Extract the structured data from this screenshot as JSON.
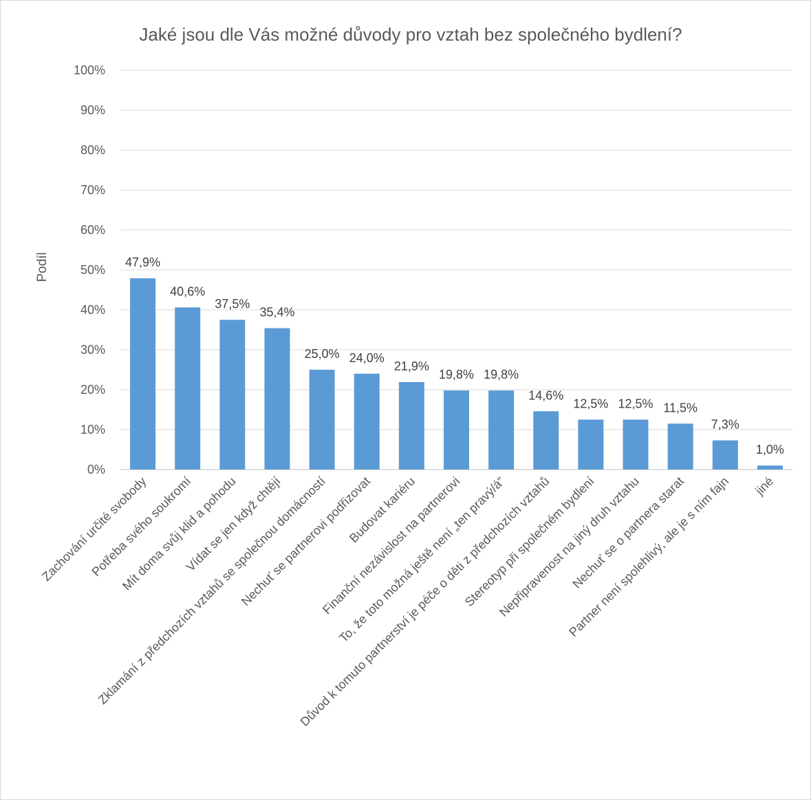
{
  "chart_data": {
    "type": "bar",
    "title": "Jaké jsou dle Vás možné důvody pro vztah bez společného bydlení?",
    "ylabel": "Podíl",
    "xlabel": "",
    "ylim": [
      0,
      100
    ],
    "yticks": [
      0,
      10,
      20,
      30,
      40,
      50,
      60,
      70,
      80,
      90,
      100
    ],
    "ytick_labels": [
      "0%",
      "10%",
      "20%",
      "30%",
      "40%",
      "50%",
      "60%",
      "70%",
      "80%",
      "90%",
      "100%"
    ],
    "grid": true,
    "bar_color": "#5b9bd5",
    "categories": [
      "Zachování určité svobody",
      "Potřeba svého soukromí",
      "Mít doma svůj klid a pohodu",
      "Vídat se jen když chtějí",
      "Zklamání z předchozích vztahů se společnou domácností",
      "Nechuť se partnerovi podřizovat",
      "Budovat kariéru",
      "Finanční nezávislost na partnerovi",
      "To, že toto možná ještě není „ten pravý/á“",
      "Důvod k tomuto partnerství je péče o děti z předchozích vztahů",
      "Stereotyp při společném bydlení",
      "Nepřipravenost na jiný druh vztahu",
      "Nechuť se o partnera starat",
      "Partner není spolehlivý, ale je s ním fajn",
      "jiné"
    ],
    "values": [
      47.9,
      40.6,
      37.5,
      35.4,
      25.0,
      24.0,
      21.9,
      19.8,
      19.8,
      14.6,
      12.5,
      12.5,
      11.5,
      7.3,
      1.0
    ],
    "data_labels": [
      "47,9%",
      "40,6%",
      "37,5%",
      "35,4%",
      "25,0%",
      "24,0%",
      "21,9%",
      "19,8%",
      "19,8%",
      "14,6%",
      "12,5%",
      "12,5%",
      "11,5%",
      "7,3%",
      "1,0%"
    ]
  }
}
